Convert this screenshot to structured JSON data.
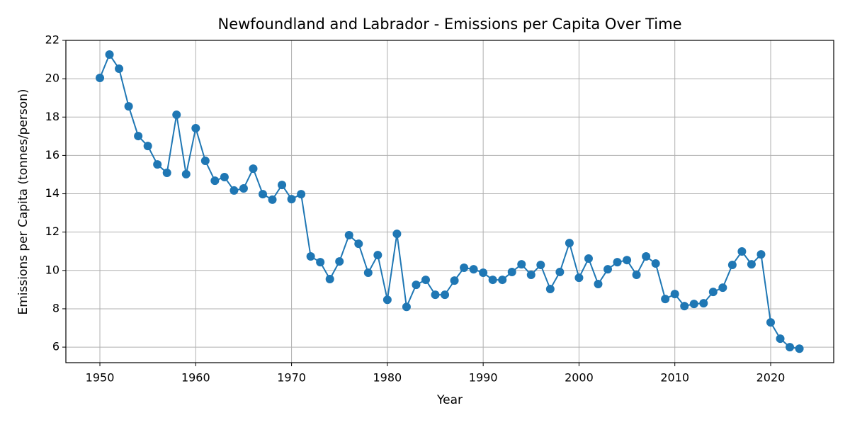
{
  "chart_data": {
    "type": "line",
    "title": "Newfoundland and Labrador - Emissions per Capita Over Time",
    "xlabel": "Year",
    "ylabel": "Emissions per Capita (tonnes/person)",
    "x": [
      1950,
      1951,
      1952,
      1953,
      1954,
      1955,
      1956,
      1957,
      1958,
      1959,
      1960,
      1961,
      1962,
      1963,
      1964,
      1965,
      1966,
      1967,
      1968,
      1969,
      1970,
      1971,
      1972,
      1973,
      1974,
      1975,
      1976,
      1977,
      1978,
      1979,
      1980,
      1981,
      1982,
      1983,
      1984,
      1985,
      1986,
      1987,
      1988,
      1989,
      1990,
      1991,
      1992,
      1993,
      1994,
      1995,
      1996,
      1997,
      1998,
      1999,
      2000,
      2001,
      2002,
      2003,
      2004,
      2005,
      2006,
      2007,
      2008,
      2009,
      2010,
      2011,
      2012,
      2013,
      2014,
      2015,
      2016,
      2017,
      2018,
      2019,
      2020,
      2021,
      2022,
      2023
    ],
    "series": [
      {
        "name": "Emissions per Capita",
        "color": "#1f77b4",
        "values": [
          20.04,
          21.26,
          20.52,
          18.56,
          17.01,
          16.49,
          15.53,
          15.09,
          18.12,
          15.02,
          17.42,
          15.72,
          14.68,
          14.87,
          14.17,
          14.28,
          15.31,
          13.98,
          13.69,
          14.46,
          13.72,
          13.98,
          10.73,
          10.43,
          9.55,
          10.47,
          11.84,
          11.39,
          9.88,
          10.8,
          8.47,
          11.91,
          8.1,
          9.25,
          9.51,
          8.73,
          8.73,
          9.47,
          10.14,
          10.06,
          9.88,
          9.51,
          9.51,
          9.92,
          10.32,
          9.77,
          10.29,
          9.03,
          9.92,
          11.43,
          9.62,
          10.62,
          9.29,
          10.06,
          10.43,
          10.54,
          9.77,
          10.73,
          10.36,
          8.51,
          8.77,
          8.14,
          8.25,
          8.29,
          8.88,
          9.1,
          10.29,
          10.99,
          10.32,
          10.84,
          7.29,
          6.44,
          6.0,
          5.92
        ]
      }
    ],
    "xlim": [
      1946.45,
      2026.58
    ],
    "xticks": [
      1950,
      1960,
      1970,
      1980,
      1990,
      2000,
      2010,
      2020
    ],
    "ylim": [
      5.19,
      22
    ],
    "yticks": [
      6,
      8,
      10,
      12,
      14,
      16,
      18,
      20,
      22
    ],
    "grid": true
  }
}
